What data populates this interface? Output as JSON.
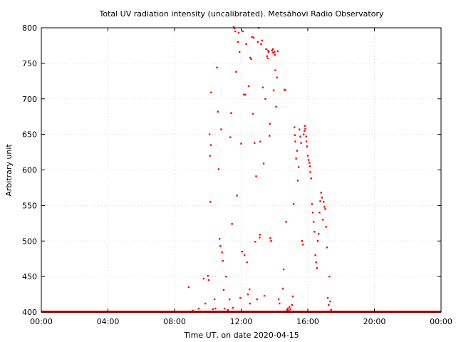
{
  "chart_data": {
    "type": "scatter",
    "title": "Total UV radiation intensity (uncalibrated). Metsähovi Radio Observatory",
    "xlabel": "Time UT, on date 2020-04-15",
    "ylabel": "Arbitrary unit",
    "xlim": [
      0,
      24
    ],
    "ylim": [
      400,
      800
    ],
    "x_tick_values": [
      0,
      4,
      8,
      12,
      16,
      20,
      24
    ],
    "x_tick_labels": [
      "00:00",
      "04:00",
      "08:00",
      "12:00",
      "16:00",
      "20:00",
      "00:00"
    ],
    "y_ticks": [
      400,
      450,
      500,
      550,
      600,
      650,
      700,
      750,
      800
    ],
    "grid": true,
    "marker_color": "#ff0000",
    "baseline": {
      "value": 400,
      "x_from": 0,
      "x_to": 24
    },
    "series": [
      {
        "points": [
          [
            8.85,
            435
          ],
          [
            9.1,
            402
          ],
          [
            9.45,
            405
          ],
          [
            9.75,
            447
          ],
          [
            9.85,
            412
          ],
          [
            10.0,
            451
          ],
          [
            10.05,
            445
          ],
          [
            10.1,
            650
          ],
          [
            10.12,
            620
          ],
          [
            10.15,
            555
          ],
          [
            10.18,
            635
          ],
          [
            10.2,
            709
          ],
          [
            10.3,
            404
          ],
          [
            10.4,
            418
          ],
          [
            10.45,
            405
          ],
          [
            10.55,
            744
          ],
          [
            10.6,
            682
          ],
          [
            10.65,
            601
          ],
          [
            10.7,
            503
          ],
          [
            10.75,
            493
          ],
          [
            10.8,
            657
          ],
          [
            10.85,
            484
          ],
          [
            10.9,
            472
          ],
          [
            10.95,
            431
          ],
          [
            11.0,
            405
          ],
          [
            11.1,
            450
          ],
          [
            11.2,
            403
          ],
          [
            11.3,
            418
          ],
          [
            11.35,
            646
          ],
          [
            11.4,
            680
          ],
          [
            11.45,
            524
          ],
          [
            11.5,
            406
          ],
          [
            11.55,
            801
          ],
          [
            11.6,
            799
          ],
          [
            11.65,
            795
          ],
          [
            11.7,
            738
          ],
          [
            11.75,
            564
          ],
          [
            11.8,
            780
          ],
          [
            11.85,
            793
          ],
          [
            11.9,
            766
          ],
          [
            11.95,
            420
          ],
          [
            12.0,
            637
          ],
          [
            12.05,
            485
          ],
          [
            12.1,
            795
          ],
          [
            12.15,
            706
          ],
          [
            12.2,
            480
          ],
          [
            12.25,
            706
          ],
          [
            12.3,
            777
          ],
          [
            12.35,
            470
          ],
          [
            12.4,
            425
          ],
          [
            12.45,
            718
          ],
          [
            12.5,
            432
          ],
          [
            12.52,
            412
          ],
          [
            12.55,
            758
          ],
          [
            12.6,
            756
          ],
          [
            12.65,
            787
          ],
          [
            12.7,
            679
          ],
          [
            12.75,
            786
          ],
          [
            12.8,
            638
          ],
          [
            12.85,
            499
          ],
          [
            12.9,
            591
          ],
          [
            12.95,
            418
          ],
          [
            13.0,
            780
          ],
          [
            13.05,
            800
          ],
          [
            13.1,
            505
          ],
          [
            13.12,
            509
          ],
          [
            13.15,
            640
          ],
          [
            13.2,
            777
          ],
          [
            13.25,
            782
          ],
          [
            13.3,
            716
          ],
          [
            13.35,
            609
          ],
          [
            13.4,
            423
          ],
          [
            13.45,
            700
          ],
          [
            13.5,
            770
          ],
          [
            13.55,
            760
          ],
          [
            13.6,
            757
          ],
          [
            13.62,
            768
          ],
          [
            13.65,
            766
          ],
          [
            13.7,
            648
          ],
          [
            13.72,
            665
          ],
          [
            13.75,
            504
          ],
          [
            13.8,
            500
          ],
          [
            13.85,
            768
          ],
          [
            13.9,
            770
          ],
          [
            13.92,
            765
          ],
          [
            13.95,
            712
          ],
          [
            14.0,
            766
          ],
          [
            14.02,
            762
          ],
          [
            14.05,
            740
          ],
          [
            14.1,
            689
          ],
          [
            14.15,
            730
          ],
          [
            14.2,
            767
          ],
          [
            14.25,
            418
          ],
          [
            14.3,
            412
          ],
          [
            14.5,
            433
          ],
          [
            14.55,
            460
          ],
          [
            14.6,
            713
          ],
          [
            14.65,
            712
          ],
          [
            14.7,
            527
          ],
          [
            14.75,
            403
          ],
          [
            14.8,
            405
          ],
          [
            14.85,
            402
          ],
          [
            14.9,
            407
          ],
          [
            14.95,
            404
          ],
          [
            15.05,
            410
          ],
          [
            15.1,
            422
          ],
          [
            15.15,
            552
          ],
          [
            15.2,
            660
          ],
          [
            15.22,
            649
          ],
          [
            15.25,
            640
          ],
          [
            15.3,
            616
          ],
          [
            15.35,
            627
          ],
          [
            15.4,
            585
          ],
          [
            15.45,
            604
          ],
          [
            15.5,
            657
          ],
          [
            15.55,
            647
          ],
          [
            15.6,
            638
          ],
          [
            15.65,
            500
          ],
          [
            15.7,
            495
          ],
          [
            15.75,
            650
          ],
          [
            15.8,
            655
          ],
          [
            15.82,
            662
          ],
          [
            15.85,
            658
          ],
          [
            15.9,
            647
          ],
          [
            15.92,
            640
          ],
          [
            15.95,
            633
          ],
          [
            16.0,
            620
          ],
          [
            16.05,
            614
          ],
          [
            16.1,
            610
          ],
          [
            16.12,
            605
          ],
          [
            16.15,
            597
          ],
          [
            16.2,
            588
          ],
          [
            16.25,
            552
          ],
          [
            16.3,
            540
          ],
          [
            16.35,
            527
          ],
          [
            16.4,
            513
          ],
          [
            16.45,
            480
          ],
          [
            16.5,
            470
          ],
          [
            16.55,
            462
          ],
          [
            16.6,
            500
          ],
          [
            16.65,
            510
          ],
          [
            16.7,
            540
          ],
          [
            16.75,
            556
          ],
          [
            16.8,
            568
          ],
          [
            16.85,
            561
          ],
          [
            16.9,
            530
          ],
          [
            16.95,
            555
          ],
          [
            17.0,
            548
          ],
          [
            17.05,
            545
          ],
          [
            17.1,
            520
          ],
          [
            17.15,
            491
          ],
          [
            17.2,
            420
          ],
          [
            17.25,
            410
          ],
          [
            17.3,
            450
          ],
          [
            17.35,
            415
          ],
          [
            17.4,
            403
          ]
        ]
      }
    ]
  }
}
